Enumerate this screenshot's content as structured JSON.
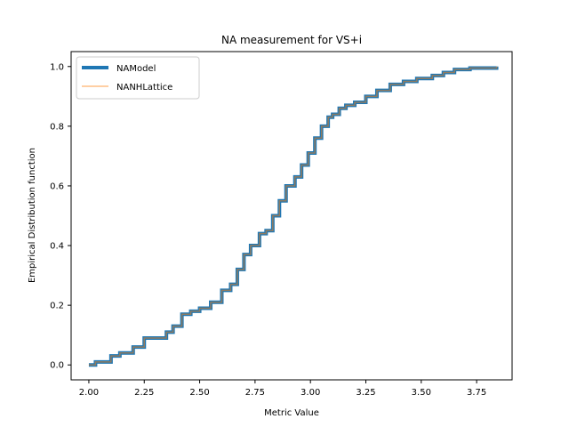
{
  "chart_data": {
    "type": "line",
    "title": "NA measurement for VS+i",
    "xlabel": "Metric Value",
    "ylabel": "Empirical Distribution function",
    "xlim": [
      1.92,
      3.91
    ],
    "ylim": [
      -0.05,
      1.05
    ],
    "xticks": [
      2.0,
      2.25,
      2.5,
      2.75,
      3.0,
      3.25,
      3.5,
      3.75
    ],
    "xtick_labels": [
      "2.00",
      "2.25",
      "2.50",
      "2.75",
      "3.00",
      "3.25",
      "3.50",
      "3.75"
    ],
    "yticks": [
      0.0,
      0.2,
      0.4,
      0.6,
      0.8,
      1.0
    ],
    "ytick_labels": [
      "0.0",
      "0.2",
      "0.4",
      "0.6",
      "0.8",
      "1.0"
    ],
    "grid": false,
    "legend_position": "top-left",
    "step": true,
    "series": [
      {
        "name": "NAModel",
        "color": "#1f77b4",
        "x": [
          2.0,
          2.03,
          2.1,
          2.14,
          2.2,
          2.25,
          2.35,
          2.38,
          2.42,
          2.46,
          2.5,
          2.55,
          2.6,
          2.64,
          2.67,
          2.7,
          2.73,
          2.77,
          2.8,
          2.83,
          2.86,
          2.89,
          2.93,
          2.96,
          2.99,
          3.02,
          3.05,
          3.08,
          3.1,
          3.13,
          3.16,
          3.2,
          3.25,
          3.3,
          3.36,
          3.42,
          3.48,
          3.55,
          3.6,
          3.65,
          3.72,
          3.84
        ],
        "y": [
          0.0,
          0.01,
          0.03,
          0.04,
          0.06,
          0.09,
          0.11,
          0.13,
          0.17,
          0.18,
          0.19,
          0.21,
          0.25,
          0.27,
          0.32,
          0.37,
          0.4,
          0.44,
          0.45,
          0.5,
          0.55,
          0.6,
          0.63,
          0.67,
          0.71,
          0.76,
          0.8,
          0.83,
          0.84,
          0.86,
          0.87,
          0.88,
          0.9,
          0.92,
          0.94,
          0.95,
          0.96,
          0.97,
          0.98,
          0.99,
          0.995,
          1.0
        ]
      },
      {
        "name": "NANHLattice",
        "color": "#ff7f0e",
        "x": [
          2.0,
          2.03,
          2.1,
          2.14,
          2.2,
          2.25,
          2.35,
          2.38,
          2.42,
          2.46,
          2.5,
          2.55,
          2.6,
          2.64,
          2.67,
          2.7,
          2.73,
          2.77,
          2.8,
          2.83,
          2.86,
          2.89,
          2.93,
          2.96,
          2.99,
          3.02,
          3.05,
          3.08,
          3.1,
          3.13,
          3.16,
          3.2,
          3.25,
          3.3,
          3.36,
          3.42,
          3.48,
          3.55,
          3.6,
          3.65,
          3.72,
          3.84
        ],
        "y": [
          0.0,
          0.01,
          0.03,
          0.04,
          0.06,
          0.09,
          0.11,
          0.13,
          0.17,
          0.18,
          0.19,
          0.21,
          0.25,
          0.27,
          0.32,
          0.37,
          0.4,
          0.44,
          0.45,
          0.5,
          0.55,
          0.6,
          0.63,
          0.67,
          0.71,
          0.76,
          0.8,
          0.83,
          0.84,
          0.86,
          0.87,
          0.88,
          0.9,
          0.92,
          0.94,
          0.95,
          0.96,
          0.97,
          0.98,
          0.99,
          0.995,
          1.0
        ]
      }
    ]
  }
}
